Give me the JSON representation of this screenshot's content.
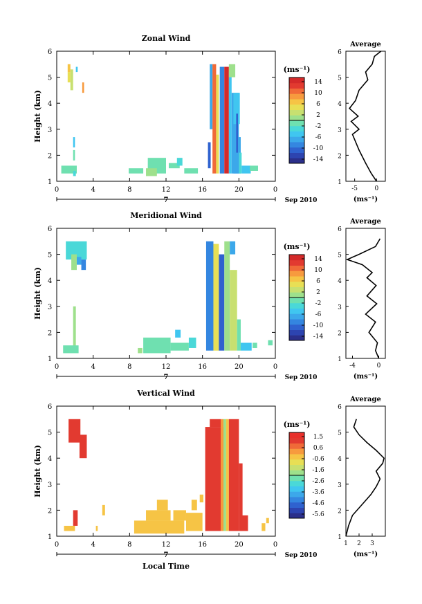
{
  "figure": {
    "xlabel": "Local Time",
    "date_label": "Sep 2010"
  },
  "colors": {
    "tick_color": "#000000",
    "background": "#ffffff",
    "panel_frame": "#000000"
  },
  "chart_data": [
    {
      "type": "heatmap",
      "title": "Zonal Wind",
      "ylabel": "Height (km)",
      "xlabel": "Local Time",
      "xlim": [
        0,
        24
      ],
      "ylim": [
        1,
        6
      ],
      "xticks": [
        "0",
        "4",
        "8",
        "12",
        "16",
        "20",
        "0"
      ],
      "yticks": [
        "1",
        "2",
        "3",
        "4",
        "5",
        "6"
      ],
      "day_label": "7",
      "colorbar": {
        "unit": "(ms⁻¹)",
        "ticks": [
          "14",
          "10",
          "6",
          "2",
          "-2",
          "-6",
          "-10",
          "-14"
        ],
        "range": [
          -16,
          16
        ],
        "colors": [
          "#2b2f8a",
          "#2d44b0",
          "#2f62cf",
          "#3486e0",
          "#3ca8ea",
          "#40c6f0",
          "#4ad8d8",
          "#6fe0b0",
          "#9ee08c",
          "#c8e070",
          "#e8df55",
          "#f6c445",
          "#f79a3e",
          "#f06a38",
          "#e23a30",
          "#d42a2a"
        ]
      },
      "series": [
        {
          "cells": [
            [
              1.2,
              1.5,
              5.2,
              5.5,
              "#f6c445"
            ],
            [
              1.2,
              1.5,
              4.8,
              5.2,
              "#e8df55"
            ],
            [
              1.5,
              1.8,
              4.5,
              5.3,
              "#c8e070"
            ],
            [
              2.1,
              2.3,
              5.2,
              5.4,
              "#40c6f0"
            ],
            [
              2.8,
              3.0,
              4.4,
              4.8,
              "#f79a3e"
            ],
            [
              1.8,
              2.0,
              1.8,
              2.2,
              "#6fe0b0"
            ],
            [
              1.8,
              2.0,
              2.3,
              2.7,
              "#40c6f0"
            ],
            [
              0.5,
              2.2,
              1.3,
              1.6,
              "#6fe0b0"
            ],
            [
              1.8,
              2.1,
              1.2,
              1.4,
              "#4ad8d8"
            ]
          ]
        },
        {
          "cells": [
            [
              10.0,
              12.0,
              1.3,
              1.9,
              "#6fe0b0"
            ],
            [
              12.3,
              13.5,
              1.5,
              1.7,
              "#6fe0b0"
            ],
            [
              7.9,
              9.5,
              1.3,
              1.5,
              "#6fe0b0"
            ],
            [
              9.8,
              11.0,
              1.2,
              1.5,
              "#9ee08c"
            ],
            [
              14.0,
              15.5,
              1.3,
              1.5,
              "#6fe0b0"
            ],
            [
              13.2,
              13.8,
              1.6,
              1.9,
              "#4ad8d8"
            ]
          ]
        },
        {
          "cells": [
            [
              16.8,
              17.1,
              3.0,
              5.5,
              "#3ca8ea"
            ],
            [
              17.1,
              17.5,
              1.3,
              5.5,
              "#f06a38"
            ],
            [
              17.5,
              17.8,
              1.3,
              5.1,
              "#e8df55"
            ],
            [
              16.6,
              16.9,
              1.5,
              2.5,
              "#2f62cf"
            ],
            [
              17.9,
              18.4,
              1.3,
              5.4,
              "#3486e0"
            ],
            [
              18.4,
              18.9,
              1.3,
              5.4,
              "#d42a2a"
            ],
            [
              18.9,
              19.2,
              1.3,
              5.2,
              "#40c6f0"
            ],
            [
              19.2,
              20.0,
              1.3,
              4.4,
              "#3ca8ea"
            ],
            [
              19.4,
              20.1,
              3.2,
              4.4,
              "#40c6f0"
            ],
            [
              19.4,
              20.2,
              1.3,
              2.7,
              "#3ca8ea"
            ],
            [
              20.0,
              20.3,
              1.3,
              2.1,
              "#4ad8d8"
            ],
            [
              18.9,
              19.6,
              5.0,
              5.5,
              "#9ee08c"
            ],
            [
              19.7,
              19.9,
              2.1,
              3.6,
              "#2f62cf"
            ],
            [
              20.3,
              21.3,
              1.3,
              1.6,
              "#40c6f0"
            ],
            [
              21.2,
              22.1,
              1.4,
              1.6,
              "#6fe0b0"
            ]
          ]
        }
      ],
      "average": {
        "title": "Average",
        "xlim": [
          -7,
          2
        ],
        "xticks": [
          "-5",
          "0"
        ],
        "xunit": "(ms⁻¹)",
        "profile": [
          [
            0,
            1.0
          ],
          [
            -1.2,
            1.3
          ],
          [
            -2.5,
            1.7
          ],
          [
            -4.0,
            2.2
          ],
          [
            -5.5,
            2.8
          ],
          [
            -4.0,
            3.0
          ],
          [
            -5.8,
            3.3
          ],
          [
            -4.2,
            3.5
          ],
          [
            -6.2,
            3.8
          ],
          [
            -4.8,
            4.1
          ],
          [
            -4.0,
            4.5
          ],
          [
            -2.0,
            4.9
          ],
          [
            -2.5,
            5.2
          ],
          [
            -1.0,
            5.5
          ],
          [
            -0.5,
            5.8
          ],
          [
            1.0,
            6.0
          ]
        ]
      }
    },
    {
      "type": "heatmap",
      "title": "Meridional Wind",
      "ylabel": "Height (km)",
      "xlabel": "Local Time",
      "xlim": [
        0,
        24
      ],
      "ylim": [
        1,
        6
      ],
      "xticks": [
        "0",
        "4",
        "8",
        "12",
        "16",
        "20",
        "0"
      ],
      "yticks": [
        "1",
        "2",
        "3",
        "4",
        "5",
        "6"
      ],
      "day_label": "7",
      "colorbar": {
        "unit": "(ms⁻¹)",
        "ticks": [
          "14",
          "10",
          "6",
          "2",
          "-2",
          "-6",
          "-10",
          "-14"
        ],
        "range": [
          -16,
          16
        ],
        "colors": [
          "#2b2f8a",
          "#2d44b0",
          "#2f62cf",
          "#3486e0",
          "#3ca8ea",
          "#40c6f0",
          "#4ad8d8",
          "#6fe0b0",
          "#9ee08c",
          "#c8e070",
          "#e8df55",
          "#f6c445",
          "#f79a3e",
          "#f06a38",
          "#e23a30",
          "#d42a2a"
        ]
      },
      "series": [
        {
          "cells": [
            [
              1.0,
              3.3,
              4.8,
              5.5,
              "#4ad8d8"
            ],
            [
              1.6,
              2.2,
              4.4,
              5.0,
              "#9ee08c"
            ],
            [
              2.2,
              2.7,
              4.6,
              4.9,
              "#3ca8ea"
            ],
            [
              2.7,
              3.2,
              4.4,
              4.8,
              "#3486e0"
            ],
            [
              1.8,
              2.1,
              1.4,
              3.0,
              "#9ee08c"
            ],
            [
              0.7,
              2.4,
              1.2,
              1.5,
              "#6fe0b0"
            ]
          ]
        },
        {
          "cells": [
            [
              9.5,
              12.5,
              1.2,
              1.8,
              "#6fe0b0"
            ],
            [
              12.5,
              14.5,
              1.3,
              1.6,
              "#6fe0b0"
            ],
            [
              14.5,
              15.3,
              1.4,
              1.8,
              "#4ad8d8"
            ],
            [
              13.0,
              13.6,
              1.8,
              2.1,
              "#40c6f0"
            ],
            [
              8.9,
              9.4,
              1.2,
              1.4,
              "#9ee08c"
            ]
          ]
        },
        {
          "cells": [
            [
              16.4,
              17.2,
              1.3,
              5.5,
              "#3486e0"
            ],
            [
              17.2,
              17.8,
              1.3,
              5.4,
              "#e8df55"
            ],
            [
              17.8,
              18.4,
              1.3,
              5.0,
              "#2f62cf"
            ],
            [
              18.4,
              19.0,
              1.3,
              5.5,
              "#9ee08c"
            ],
            [
              19.0,
              19.8,
              1.3,
              4.4,
              "#c8e070"
            ],
            [
              19.8,
              20.2,
              1.3,
              2.5,
              "#6fe0b0"
            ],
            [
              19.0,
              19.6,
              5.0,
              5.5,
              "#3ca8ea"
            ],
            [
              20.2,
              21.4,
              1.3,
              1.6,
              "#40c6f0"
            ],
            [
              21.5,
              22.0,
              1.4,
              1.6,
              "#6fe0b0"
            ],
            [
              23.2,
              23.7,
              1.5,
              1.7,
              "#6fe0b0"
            ]
          ]
        }
      ],
      "average": {
        "title": "Average",
        "xlim": [
          -5,
          1
        ],
        "xticks": [
          "-4",
          "0"
        ],
        "xunit": "(ms⁻¹)",
        "profile": [
          [
            0,
            1.0
          ],
          [
            -0.5,
            1.3
          ],
          [
            -0.2,
            1.6
          ],
          [
            -1.5,
            2.0
          ],
          [
            -0.5,
            2.4
          ],
          [
            -2.0,
            2.7
          ],
          [
            -0.3,
            3.1
          ],
          [
            -1.8,
            3.4
          ],
          [
            -0.4,
            3.8
          ],
          [
            -1.8,
            4.1
          ],
          [
            -1.0,
            4.3
          ],
          [
            -2.5,
            4.6
          ],
          [
            -4.8,
            4.8
          ],
          [
            -3.0,
            5.0
          ],
          [
            -0.5,
            5.3
          ],
          [
            0.2,
            5.6
          ]
        ]
      }
    },
    {
      "type": "heatmap",
      "title": "Vertical Wind",
      "ylabel": "Height (km)",
      "xlabel": "Local Time",
      "xlim": [
        0,
        24
      ],
      "ylim": [
        1,
        6
      ],
      "xticks": [
        "0",
        "4",
        "8",
        "12",
        "16",
        "20",
        "0"
      ],
      "yticks": [
        "1",
        "2",
        "3",
        "4",
        "5",
        "6"
      ],
      "day_label": "7",
      "colorbar": {
        "unit": "(ms⁻¹)",
        "ticks": [
          "1.5",
          "0.6",
          "-0.6",
          "-1.6",
          "-2.6",
          "-3.6",
          "-4.6",
          "-5.6"
        ],
        "range": [
          -6,
          2
        ],
        "colors": [
          "#2b2f8a",
          "#2d44b0",
          "#2f62cf",
          "#3486e0",
          "#3ca8ea",
          "#40c6f0",
          "#4ad8d8",
          "#6fe0b0",
          "#9ee08c",
          "#c8e070",
          "#e8df55",
          "#f6c445",
          "#f79a3e",
          "#f06a38",
          "#e23a30",
          "#e8302b"
        ]
      },
      "series": [
        {
          "cells": [
            [
              1.3,
              2.6,
              4.6,
              5.5,
              "#e23a30"
            ],
            [
              2.5,
              3.3,
              4.0,
              4.9,
              "#e23a30"
            ],
            [
              1.8,
              2.3,
              1.4,
              2.0,
              "#e23a30"
            ],
            [
              0.8,
              2.0,
              1.2,
              1.4,
              "#f6c445"
            ],
            [
              5.0,
              5.3,
              1.8,
              2.2,
              "#f6c445"
            ],
            [
              4.3,
              4.5,
              1.2,
              1.4,
              "#f6c445"
            ]
          ]
        },
        {
          "cells": [
            [
              8.5,
              14.0,
              1.1,
              1.6,
              "#f6c445"
            ],
            [
              9.8,
              12.5,
              1.6,
              2.0,
              "#f6c445"
            ],
            [
              11.0,
              12.2,
              2.0,
              2.4,
              "#f6c445"
            ],
            [
              12.8,
              14.2,
              1.6,
              2.0,
              "#f6c445"
            ],
            [
              14.2,
              16.0,
              1.2,
              1.9,
              "#f6c445"
            ],
            [
              14.8,
              15.4,
              2.0,
              2.4,
              "#f6c445"
            ],
            [
              15.7,
              16.1,
              2.3,
              2.6,
              "#f6c445"
            ]
          ]
        },
        {
          "cells": [
            [
              16.3,
              18.3,
              1.2,
              5.2,
              "#e23a30"
            ],
            [
              16.8,
              18.0,
              5.2,
              5.5,
              "#e23a30"
            ],
            [
              18.3,
              18.6,
              1.2,
              5.5,
              "#9ee08c"
            ],
            [
              18.6,
              18.9,
              1.2,
              5.5,
              "#f6c445"
            ],
            [
              18.9,
              20.0,
              1.2,
              5.5,
              "#e23a30"
            ],
            [
              20.0,
              20.4,
              1.2,
              3.8,
              "#e23a30"
            ],
            [
              20.2,
              21.0,
              1.2,
              1.8,
              "#e23a30"
            ],
            [
              22.5,
              22.9,
              1.2,
              1.5,
              "#f6c445"
            ],
            [
              23.0,
              23.3,
              1.5,
              1.7,
              "#f6c445"
            ],
            [
              18.0,
              18.3,
              1.2,
              5.5,
              "#f79a3e"
            ]
          ]
        }
      ],
      "average": {
        "title": "Average",
        "xlim": [
          1,
          4
        ],
        "xticks": [
          "1",
          "2",
          "3"
        ],
        "xunit": "(ms⁻¹)",
        "profile": [
          [
            1.0,
            1.0
          ],
          [
            1.2,
            1.4
          ],
          [
            1.5,
            1.8
          ],
          [
            2.2,
            2.2
          ],
          [
            2.9,
            2.6
          ],
          [
            3.3,
            2.9
          ],
          [
            3.6,
            3.2
          ],
          [
            3.3,
            3.5
          ],
          [
            3.8,
            3.8
          ],
          [
            3.9,
            4.0
          ],
          [
            3.3,
            4.3
          ],
          [
            2.6,
            4.6
          ],
          [
            2.0,
            4.9
          ],
          [
            1.6,
            5.2
          ],
          [
            1.8,
            5.5
          ]
        ]
      }
    }
  ]
}
